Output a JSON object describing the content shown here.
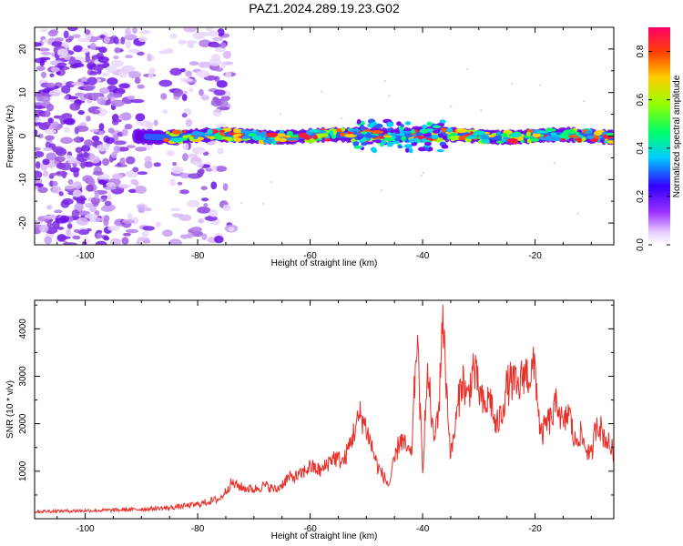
{
  "title": "PAZ1.2024.289.19.23.G02",
  "colors": {
    "snr_line": "#e8302a",
    "axis": "#000000",
    "background": "#ffffff"
  },
  "chart_data": [
    {
      "type": "heatmap",
      "xlabel": "Height of straight line (km)",
      "ylabel": "Frequency (Hz)",
      "xlim": [
        -109,
        -6
      ],
      "ylim": [
        -25,
        25
      ],
      "xticks": [
        -100,
        -80,
        -60,
        -40,
        -20
      ],
      "yticks": [
        -20,
        -10,
        0,
        10,
        20
      ],
      "xtick_labels": [
        "-100",
        "-80",
        "-60",
        "-40",
        "-20"
      ],
      "ytick_labels": [
        "-20",
        "-10",
        "0",
        "10",
        "20"
      ],
      "colorscale": "rainbow",
      "colorbar": {
        "label": "Normalized spectral amplitude",
        "range": [
          0.0,
          0.9
        ],
        "ticks": [
          0.0,
          0.2,
          0.4,
          0.6,
          0.8
        ],
        "tick_labels": [
          "0.0",
          "0.2",
          "0.4",
          "0.6",
          "0.8"
        ]
      },
      "description_points": {
        "noise_region_km": [
          -109,
          -74
        ],
        "signal_band_hz": [
          -2,
          2
        ]
      }
    },
    {
      "type": "line",
      "xlabel": "Height of straight line (km)",
      "ylabel": "SNR (10 * v/v)",
      "xlim": [
        -109,
        -6
      ],
      "ylim": [
        0,
        4600
      ],
      "xticks": [
        -100,
        -80,
        -60,
        -40,
        -20
      ],
      "yticks": [
        1000,
        2000,
        3000,
        4000
      ],
      "xtick_labels": [
        "-100",
        "-80",
        "-60",
        "-40",
        "-20"
      ],
      "ytick_labels": [
        "1000",
        "2000",
        "3000",
        "4000"
      ],
      "series": [
        {
          "color": "#e8302a",
          "x": [
            -109,
            -105,
            -100,
            -95,
            -90,
            -85,
            -80,
            -76,
            -74,
            -72,
            -70,
            -68,
            -66,
            -64,
            -62,
            -60,
            -58,
            -56,
            -54,
            -52,
            -51,
            -50,
            -48,
            -46,
            -44,
            -42,
            -41,
            -40,
            -39.5,
            -39,
            -38,
            -37,
            -36.5,
            -36,
            -35,
            -34,
            -33,
            -32,
            -31,
            -30,
            -29,
            -28,
            -27,
            -26,
            -25,
            -24,
            -23,
            -22,
            -21,
            -20,
            -19,
            -18,
            -17,
            -16,
            -15,
            -14,
            -13,
            -12,
            -11,
            -10,
            -9,
            -8,
            -7,
            -6
          ],
          "y": [
            150,
            160,
            170,
            180,
            200,
            230,
            300,
            420,
            750,
            650,
            620,
            700,
            600,
            850,
            900,
            1100,
            1000,
            1300,
            1200,
            1900,
            2200,
            1900,
            1100,
            700,
            1700,
            1300,
            3900,
            1000,
            2300,
            3000,
            1600,
            2500,
            4400,
            3300,
            1300,
            2100,
            3000,
            2500,
            3200,
            2700,
            2300,
            2600,
            1900,
            2200,
            2800,
            2900,
            2700,
            3100,
            3000,
            3200,
            1700,
            2000,
            2100,
            2500,
            1900,
            2300,
            1600,
            1800,
            1500,
            1300,
            2100,
            1800,
            1600,
            1400
          ]
        }
      ]
    }
  ]
}
